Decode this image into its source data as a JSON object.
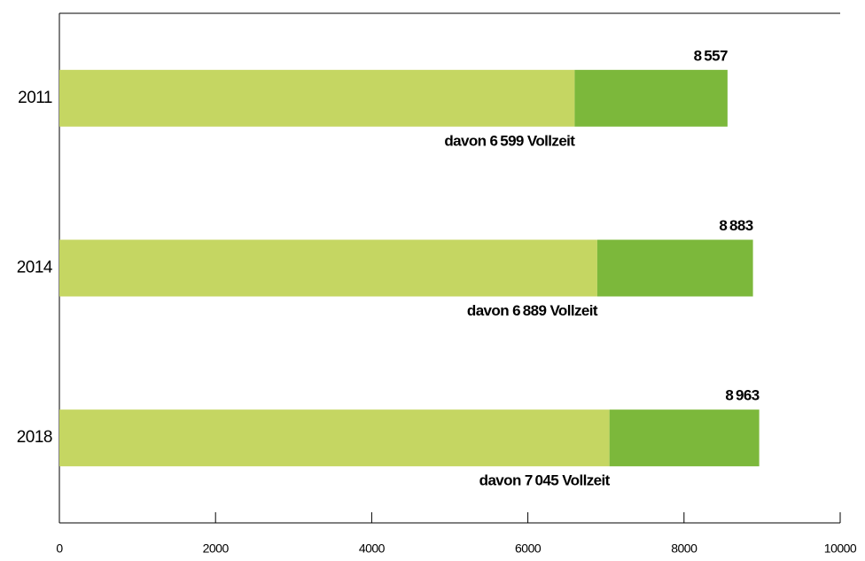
{
  "chart_data": {
    "type": "stacked_barh",
    "categories": [
      "2011",
      "2014",
      "2018"
    ],
    "series": [
      {
        "color": "#c5d662",
        "values": [
          6599,
          6889,
          7045
        ],
        "value_labels": [
          "davon 6 599 Vollzeit",
          "davon 6 889 Vollzeit",
          "davon 7 045 Vollzeit"
        ]
      },
      {
        "color": "#7cb83b",
        "values": [
          1958,
          1994,
          1918
        ]
      }
    ],
    "totals": [
      8557,
      8883,
      8963
    ],
    "total_labels": [
      "8 557",
      "8 883",
      "8 963"
    ],
    "xlim": [
      0,
      10000
    ],
    "xticks": [
      0,
      2000,
      4000,
      6000,
      8000,
      10000
    ]
  }
}
